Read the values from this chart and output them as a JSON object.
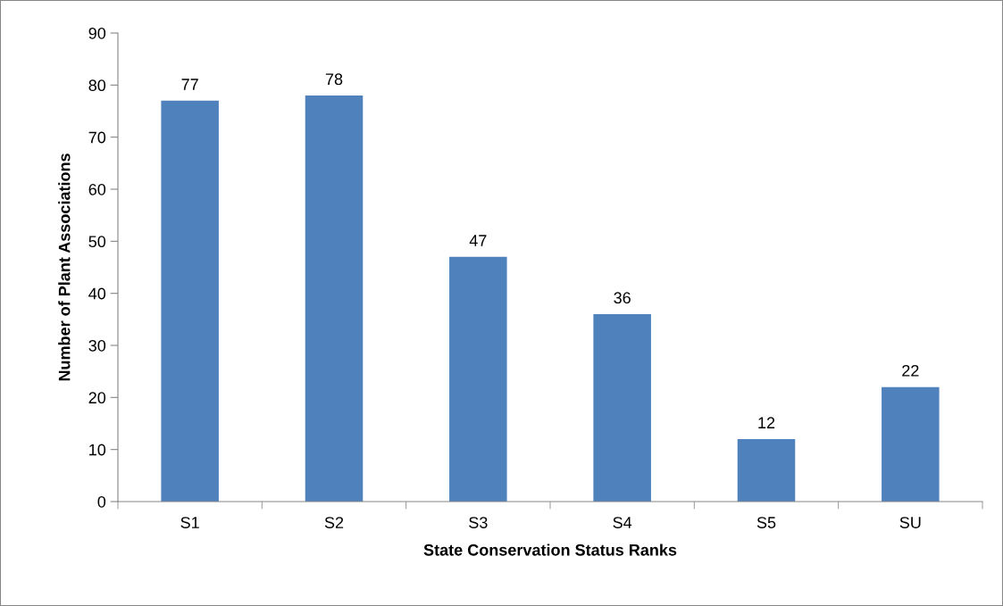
{
  "chart_data": {
    "type": "bar",
    "xlabel": "State Conservation Status Ranks",
    "ylabel": "Number of Plant Associations",
    "categories": [
      "S1",
      "S2",
      "S3",
      "S4",
      "S5",
      "SU"
    ],
    "values": [
      77,
      78,
      47,
      36,
      12,
      22
    ],
    "color": "#4f81bd",
    "ylim": [
      0,
      90
    ],
    "yticks": [
      0,
      10,
      20,
      30,
      40,
      50,
      60,
      70,
      80,
      90
    ],
    "data_labels": true,
    "grid": false,
    "legend": false
  }
}
